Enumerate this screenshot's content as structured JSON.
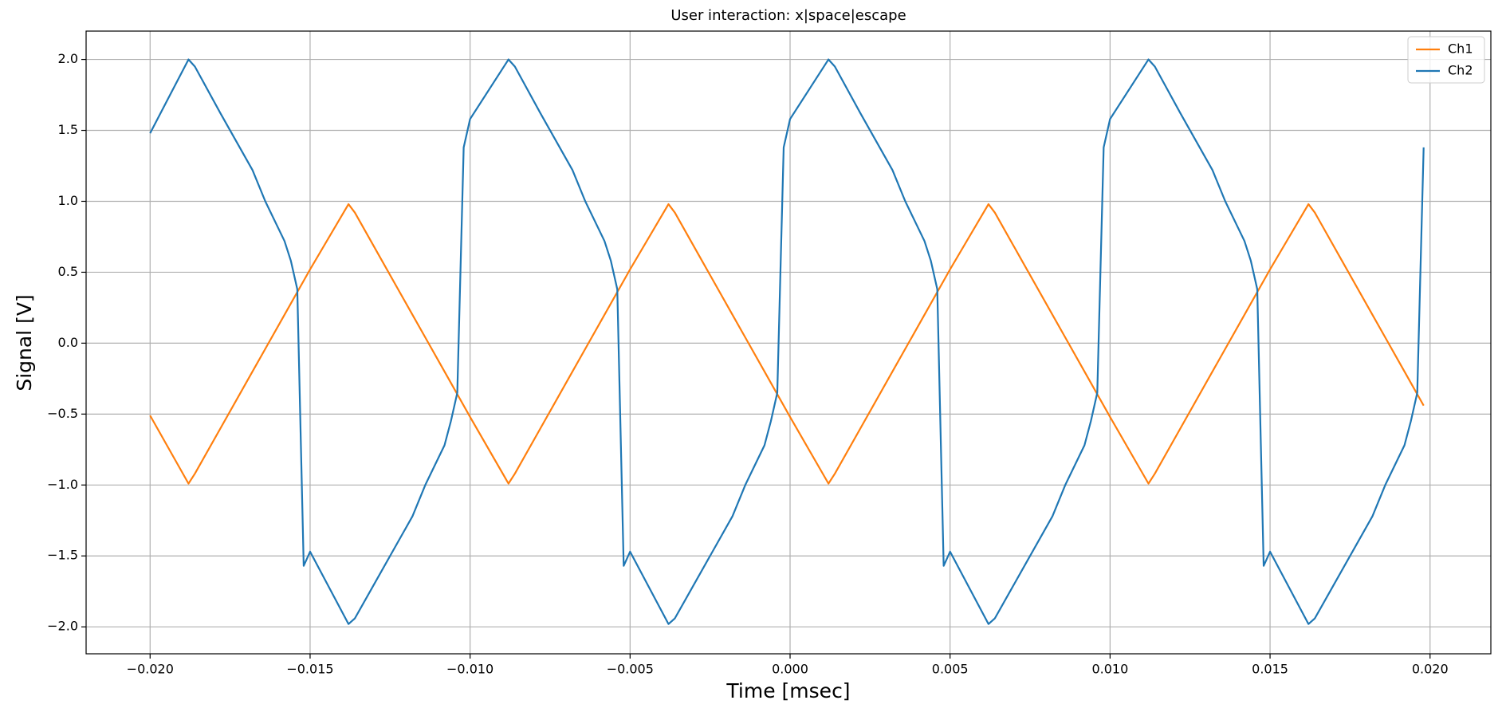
{
  "chart_data": {
    "type": "line",
    "title": "User interaction: x|space|escape",
    "xlabel": "Time [msec]",
    "ylabel": "Signal [V]",
    "x": [
      -0.02,
      -0.0188,
      -0.0186,
      -0.0178,
      -0.0168,
      -0.0164,
      -0.0158,
      -0.0156,
      -0.0154,
      -0.0152,
      -0.015,
      -0.0138,
      -0.0136,
      -0.0128,
      -0.0118,
      -0.0114,
      -0.0108,
      -0.0106,
      -0.0104,
      -0.0102,
      -0.01,
      -0.0088,
      -0.0086,
      -0.0078,
      -0.0068,
      -0.0064,
      -0.0058,
      -0.0056,
      -0.0054,
      -0.0052,
      -0.005,
      -0.0038,
      -0.0036,
      -0.0028,
      -0.0018,
      -0.0014,
      -0.0008,
      -0.0006,
      -0.0004,
      -0.0002,
      0,
      0.0012,
      0.0014,
      0.0022,
      0.0032,
      0.0036,
      0.0042,
      0.0044,
      0.0046,
      0.0048,
      0.005,
      0.0062,
      0.0064,
      0.0072,
      0.0082,
      0.0086,
      0.0092,
      0.0094,
      0.0096,
      0.0098,
      0.01,
      0.0112,
      0.0114,
      0.0122,
      0.0132,
      0.0136,
      0.0142,
      0.0144,
      0.0146,
      0.0148,
      0.015,
      0.0162,
      0.0164,
      0.0172,
      0.0182,
      0.0186,
      0.0192,
      0.0194,
      0.0196,
      0.0198
    ],
    "series": [
      {
        "name": "Ch1",
        "color": "#ff7f0e",
        "values": [
          -0.51,
          -0.99,
          -0.92,
          -0.6,
          -0.2,
          -0.04,
          0.2,
          0.28,
          0.36,
          0.44,
          0.52,
          0.98,
          0.92,
          0.6,
          0.2,
          0.04,
          -0.2,
          -0.28,
          -0.36,
          -0.44,
          -0.52,
          -0.99,
          -0.92,
          -0.6,
          -0.2,
          -0.04,
          0.2,
          0.28,
          0.36,
          0.44,
          0.52,
          0.98,
          0.92,
          0.6,
          0.2,
          0.04,
          -0.2,
          -0.28,
          -0.36,
          -0.44,
          -0.52,
          -0.99,
          -0.92,
          -0.6,
          -0.2,
          -0.04,
          0.2,
          0.28,
          0.36,
          0.44,
          0.52,
          0.98,
          0.92,
          0.6,
          0.2,
          0.04,
          -0.2,
          -0.28,
          -0.36,
          -0.44,
          -0.52,
          -0.99,
          -0.92,
          -0.6,
          -0.2,
          -0.04,
          0.2,
          0.28,
          0.36,
          0.44,
          0.52,
          0.98,
          0.92,
          0.6,
          0.2,
          0.04,
          -0.2,
          -0.28,
          -0.36,
          -0.44
        ]
      },
      {
        "name": "Ch2",
        "color": "#1f77b4",
        "values": [
          1.48,
          2.0,
          1.95,
          1.62,
          1.22,
          1.0,
          0.72,
          0.58,
          0.38,
          -1.57,
          -1.47,
          -1.98,
          -1.94,
          -1.62,
          -1.22,
          -1.0,
          -0.72,
          -0.55,
          -0.35,
          1.38,
          1.58,
          2.0,
          1.95,
          1.62,
          1.22,
          1.0,
          0.72,
          0.58,
          0.38,
          -1.57,
          -1.47,
          -1.98,
          -1.94,
          -1.62,
          -1.22,
          -1.0,
          -0.72,
          -0.55,
          -0.35,
          1.38,
          1.58,
          2.0,
          1.95,
          1.62,
          1.22,
          1.0,
          0.72,
          0.58,
          0.38,
          -1.57,
          -1.47,
          -1.98,
          -1.94,
          -1.62,
          -1.22,
          -1.0,
          -0.72,
          -0.55,
          -0.35,
          1.38,
          1.58,
          2.0,
          1.95,
          1.62,
          1.22,
          1.0,
          0.72,
          0.58,
          0.38,
          -1.57,
          -1.47,
          -1.98,
          -1.94,
          -1.62,
          -1.22,
          -1.0,
          -0.72,
          -0.55,
          -0.35,
          1.38
        ]
      }
    ],
    "xlim": [
      -0.022,
      0.0219
    ],
    "ylim": [
      -2.19,
      2.2
    ],
    "xticks": [
      {
        "value": -0.02,
        "label": "−0.020"
      },
      {
        "value": -0.015,
        "label": "−0.015"
      },
      {
        "value": -0.01,
        "label": "−0.010"
      },
      {
        "value": -0.005,
        "label": "−0.005"
      },
      {
        "value": 0,
        "label": "0.000"
      },
      {
        "value": 0.005,
        "label": "0.005"
      },
      {
        "value": 0.01,
        "label": "0.010"
      },
      {
        "value": 0.015,
        "label": "0.015"
      },
      {
        "value": 0.02,
        "label": "0.020"
      }
    ],
    "yticks": [
      {
        "value": -2,
        "label": "−2.0"
      },
      {
        "value": -1.5,
        "label": "−1.5"
      },
      {
        "value": -1,
        "label": "−1.0"
      },
      {
        "value": -0.5,
        "label": "−0.5"
      },
      {
        "value": 0,
        "label": "0.0"
      },
      {
        "value": 0.5,
        "label": "0.5"
      },
      {
        "value": 1,
        "label": "1.0"
      },
      {
        "value": 1.5,
        "label": "1.5"
      },
      {
        "value": 2,
        "label": "2.0"
      }
    ],
    "grid": true,
    "legend": "upper right"
  }
}
